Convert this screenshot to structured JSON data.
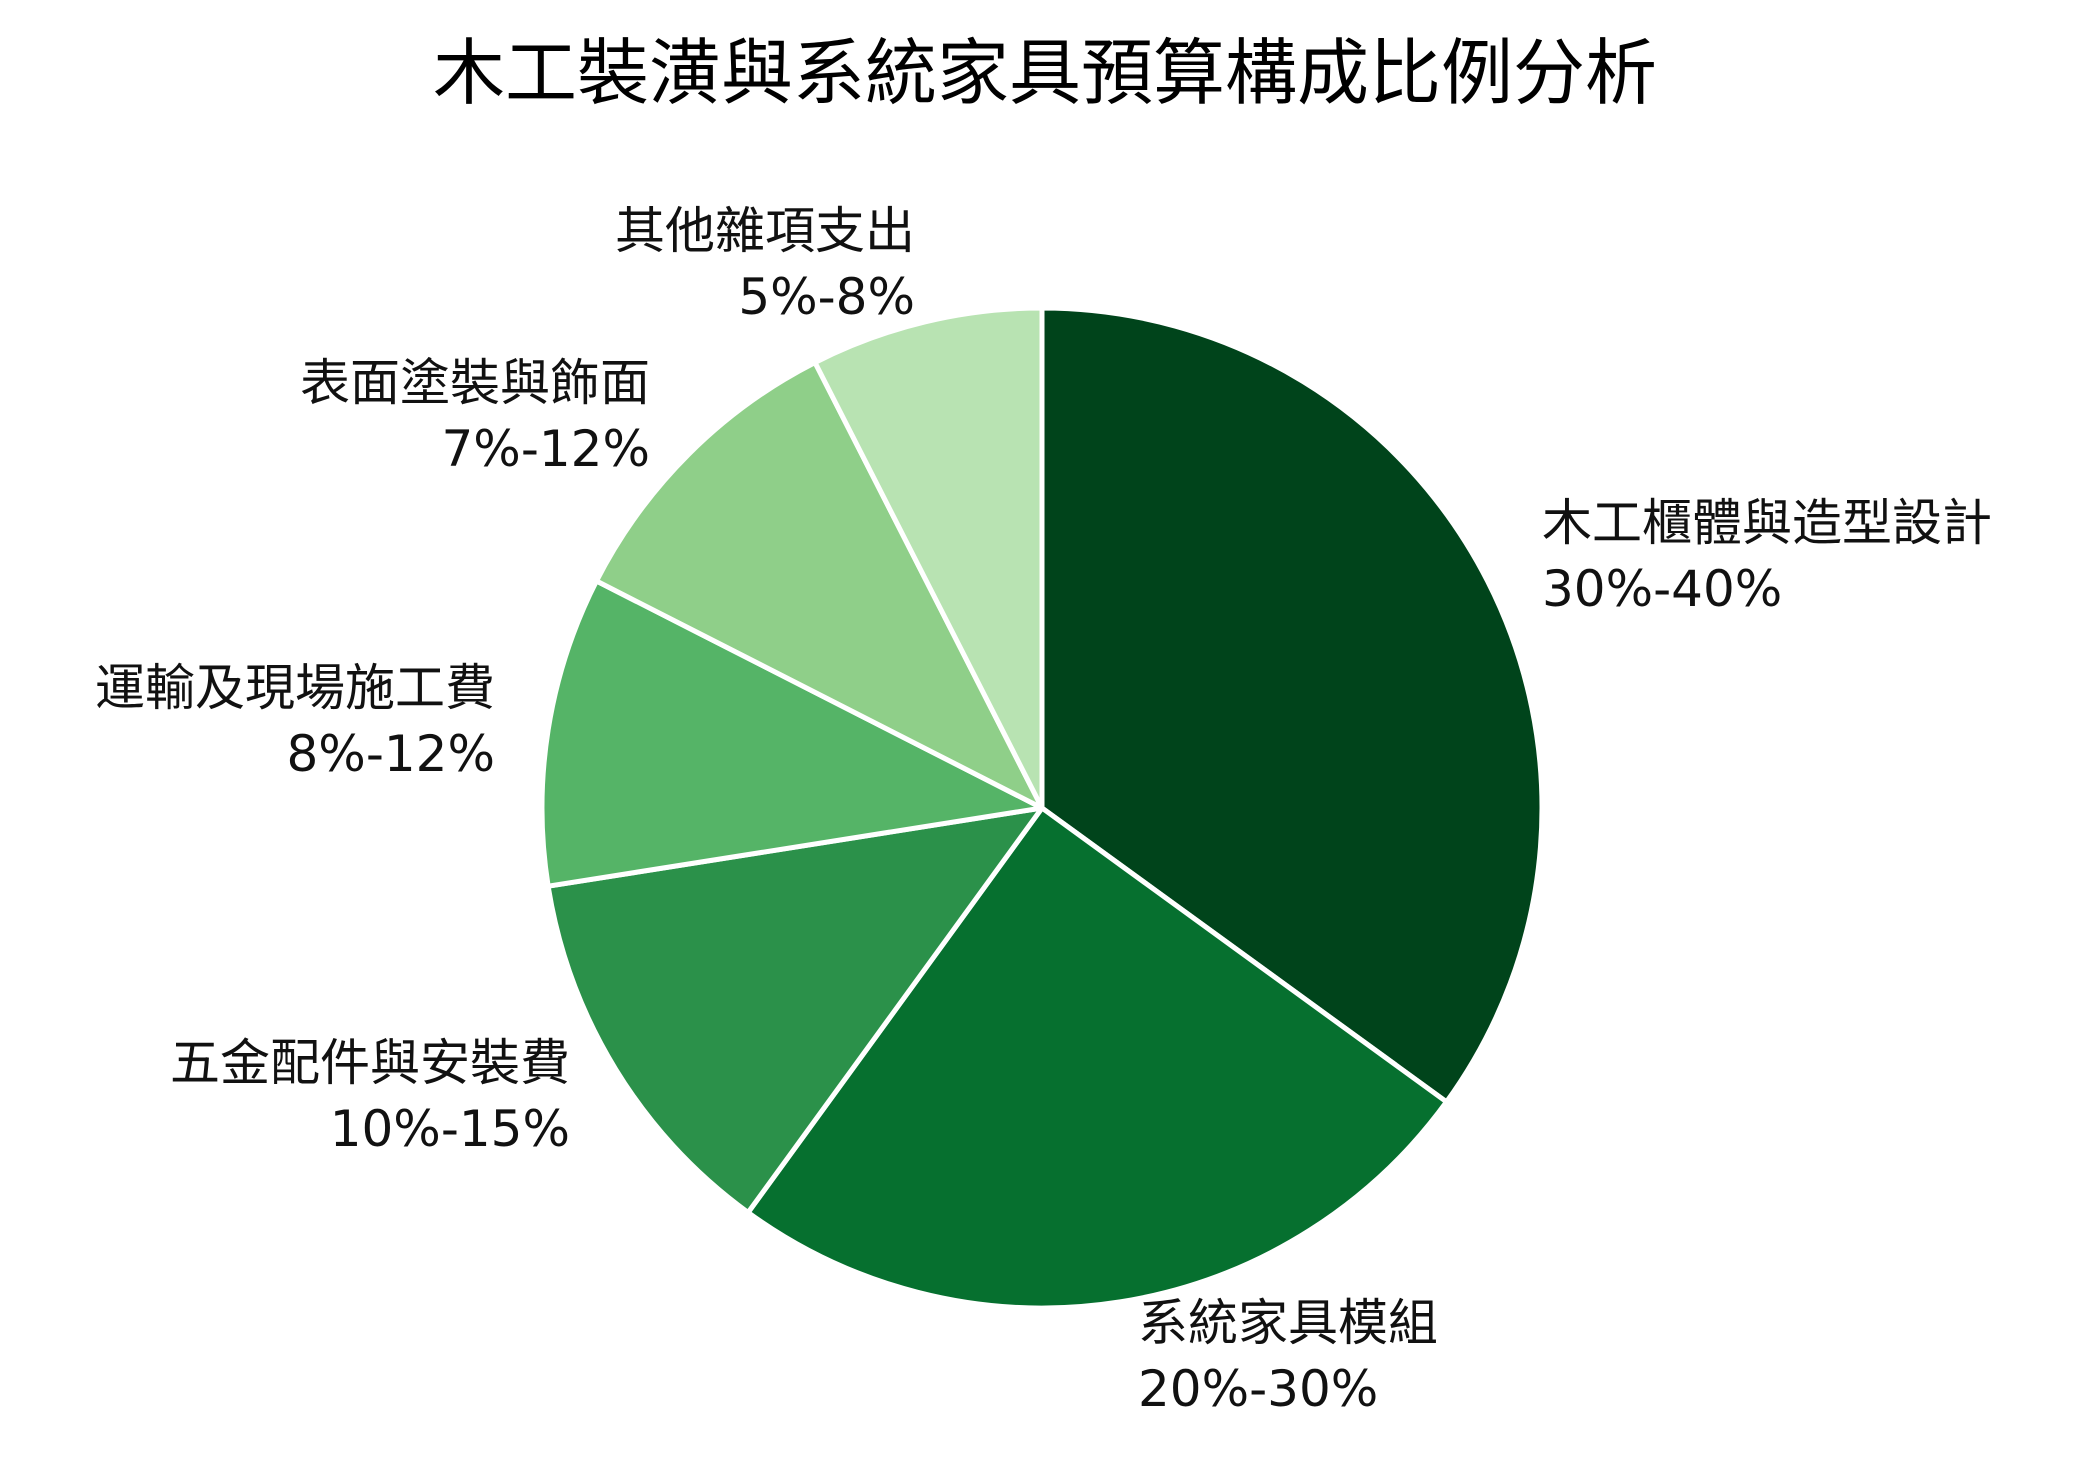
{
  "chart_data": {
    "type": "pie",
    "title": "木工裝潢與系統家具預算構成比例分析",
    "start_angle_deg": 0,
    "direction": "clockwise",
    "slices": [
      {
        "label": "木工櫃體與造型設計",
        "range": "30%-40%",
        "value": 35.0,
        "color": "#00441b"
      },
      {
        "label": "系統家具模組",
        "range": "20%-30%",
        "value": 25.0,
        "color": "#06702f"
      },
      {
        "label": "五金配件與安裝費",
        "range": "10%-15%",
        "value": 12.5,
        "color": "#2b914a"
      },
      {
        "label": "運輸及現場施工費",
        "range": "8%-12%",
        "value": 10.0,
        "color": "#55b467"
      },
      {
        "label": "表面塗裝與飾面",
        "range": "7%-12%",
        "value": 10.0,
        "color": "#8fcf89"
      },
      {
        "label": "其他雜項支出",
        "range": "5%-8%",
        "value": 7.5,
        "color": "#b8e3b2"
      }
    ]
  }
}
